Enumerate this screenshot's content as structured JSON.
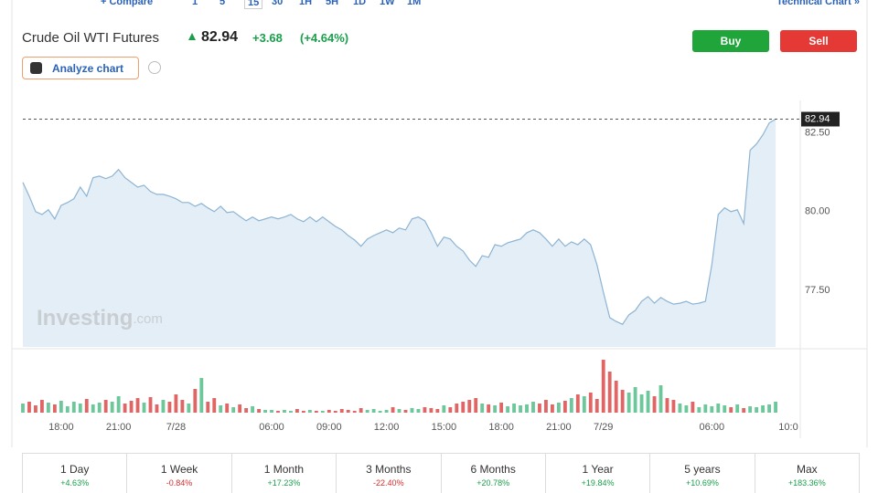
{
  "toolbar": {
    "items": [
      "+ Compare",
      "1",
      "5",
      "15",
      "30",
      "1H",
      "5H",
      "1D",
      "1W",
      "1M"
    ],
    "link": "Technical Chart »"
  },
  "header": {
    "name": "Crude Oil WTI Futures",
    "price": "82.94",
    "change": "+3.68",
    "change_pct": "(+4.64%)",
    "buy": "Buy",
    "sell": "Sell",
    "analyze": "Analyze chart"
  },
  "chart_data": {
    "type": "area",
    "watermark": [
      "Investing",
      ".com"
    ],
    "categories": [
      null,
      null,
      null,
      null,
      null,
      null,
      "18:00",
      null,
      null,
      null,
      null,
      null,
      null,
      null,
      null,
      "21:00",
      null,
      null,
      null,
      null,
      null,
      null,
      null,
      null,
      "7/28",
      null,
      null,
      null,
      null,
      null,
      null,
      null,
      null,
      null,
      null,
      null,
      null,
      null,
      null,
      "06:00",
      null,
      null,
      null,
      null,
      null,
      null,
      null,
      null,
      "09:00",
      null,
      null,
      null,
      null,
      null,
      null,
      null,
      null,
      "12:00",
      null,
      null,
      null,
      null,
      null,
      null,
      null,
      null,
      "15:00",
      null,
      null,
      null,
      null,
      null,
      null,
      null,
      null,
      "18:00",
      null,
      null,
      null,
      null,
      null,
      null,
      null,
      null,
      "21:00",
      null,
      null,
      null,
      null,
      null,
      null,
      "7/29",
      null,
      null,
      null,
      null,
      null,
      null,
      null,
      null,
      null,
      null,
      null,
      null,
      null,
      null,
      null,
      null,
      "06:00",
      null,
      null,
      null,
      null,
      null,
      null,
      null,
      null,
      null,
      null,
      null,
      "10:0"
    ],
    "ylim": [
      75.7,
      83.1
    ],
    "yticks": [
      {
        "value": 77.5,
        "label": "77.50"
      },
      {
        "value": 80,
        "label": "80.00"
      },
      {
        "value": 82.5,
        "label": "82.50"
      }
    ],
    "grid": false,
    "series": [
      {
        "color": "#8db4d4",
        "fill": "#e4eef6",
        "values": [
          80.93,
          80.49,
          80.0,
          79.91,
          80.06,
          79.77,
          80.2,
          80.29,
          80.41,
          80.78,
          80.49,
          81.08,
          81.13,
          81.05,
          81.13,
          81.34,
          81.08,
          80.93,
          80.78,
          80.84,
          80.64,
          80.55,
          80.55,
          80.49,
          80.41,
          80.29,
          80.29,
          80.17,
          80.26,
          80.12,
          80.0,
          80.17,
          79.97,
          80.0,
          79.85,
          79.71,
          79.83,
          79.71,
          79.77,
          79.83,
          79.77,
          79.83,
          79.91,
          79.77,
          79.68,
          79.83,
          79.68,
          79.83,
          79.68,
          79.53,
          79.42,
          79.24,
          79.1,
          78.9,
          79.13,
          79.24,
          79.33,
          79.42,
          79.33,
          79.48,
          79.42,
          79.77,
          79.83,
          79.71,
          79.33,
          78.9,
          79.19,
          79.13,
          78.9,
          78.75,
          78.46,
          78.26,
          78.6,
          78.55,
          78.95,
          78.9,
          79.01,
          79.07,
          79.13,
          79.33,
          79.42,
          79.33,
          79.13,
          78.9,
          79.13,
          78.9,
          79.04,
          78.95,
          79.13,
          78.95,
          78.31,
          77.44,
          76.63,
          76.51,
          76.42,
          76.72,
          76.86,
          77.15,
          77.3,
          77.09,
          77.27,
          77.15,
          77.06,
          77.09,
          77.15,
          77.06,
          77.09,
          77.15,
          78.31,
          79.91,
          80.12,
          80.0,
          80.06,
          79.62,
          81.95,
          82.15,
          82.44,
          82.82,
          82.94,
          null,
          null
        ]
      },
      {
        "type": "bar",
        "up_color": "#6cc79a",
        "down_color": "#e06666",
        "values": [
          10,
          12,
          8,
          14,
          11,
          9,
          13,
          7,
          12,
          10,
          15,
          9,
          11,
          14,
          12,
          18,
          10,
          13,
          16,
          11,
          17,
          9,
          14,
          12,
          20,
          14,
          10,
          26,
          38,
          12,
          16,
          8,
          10,
          6,
          9,
          5,
          7,
          4,
          3,
          3,
          2,
          3,
          2,
          4,
          2,
          3,
          2,
          2,
          3,
          2,
          4,
          3,
          2,
          5,
          3,
          4,
          2,
          3,
          6,
          4,
          3,
          5,
          4,
          6,
          5,
          4,
          8,
          6,
          10,
          12,
          14,
          16,
          10,
          9,
          8,
          11,
          7,
          10,
          8,
          9,
          12,
          10,
          14,
          9,
          11,
          13,
          16,
          20,
          18,
          22,
          15,
          58,
          45,
          35,
          25,
          22,
          28,
          20,
          24,
          18,
          30,
          16,
          14,
          10,
          8,
          12,
          6,
          9,
          7,
          10,
          8,
          6,
          9,
          5,
          7,
          6,
          8,
          9,
          12,
          null,
          null
        ]
      }
    ]
  },
  "periods": [
    {
      "label": "1 Day",
      "change": "+4.63%"
    },
    {
      "label": "1 Week",
      "change": "-0.84%"
    },
    {
      "label": "1 Month",
      "change": "+17.23%"
    },
    {
      "label": "3 Months",
      "change": "-22.40%"
    },
    {
      "label": "6 Months",
      "change": "+20.78%"
    },
    {
      "label": "1 Year",
      "change": "+19.84%"
    },
    {
      "label": "5 years",
      "change": "+10.69%"
    },
    {
      "label": "Max",
      "change": "+183.36%"
    }
  ]
}
